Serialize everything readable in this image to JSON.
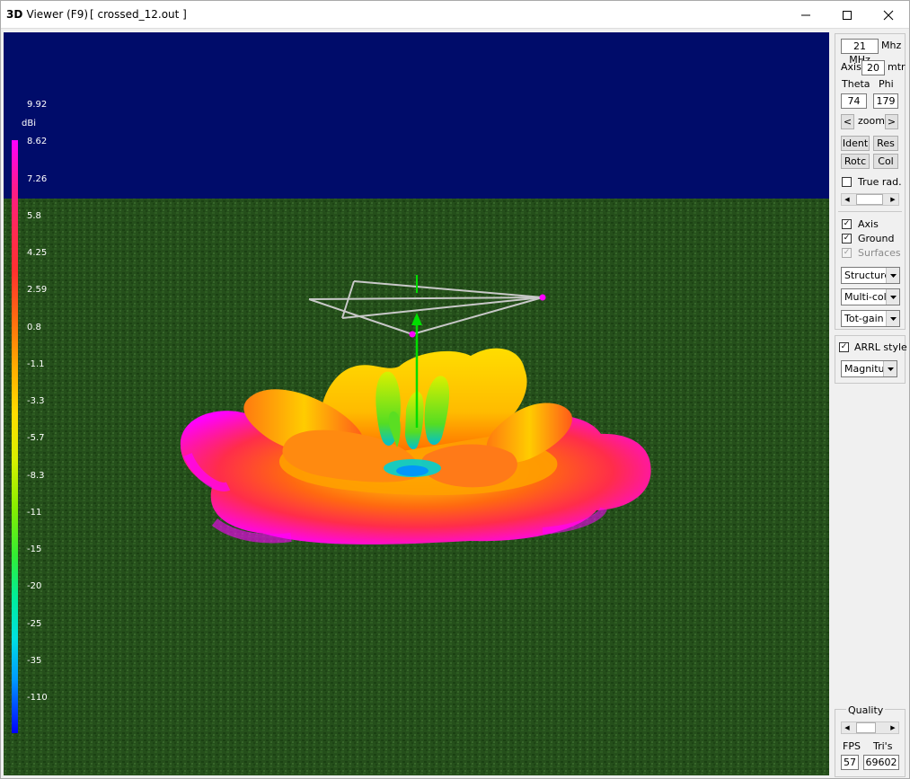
{
  "window": {
    "title_bold": "3D",
    "title_rest": "Viewer (F9)",
    "file_title": "[  crossed_12.out ]",
    "controls": [
      "minimize",
      "maximize",
      "close"
    ]
  },
  "legend": {
    "unit": "dBi",
    "labels": [
      "9.92",
      "8.62",
      "7.26",
      "5.8",
      "4.25",
      "2.59",
      "0.8",
      "-1.1",
      "-3.3",
      "-5.7",
      "-8.3",
      "-11",
      "-15",
      "-20",
      "-25",
      "-35",
      "-110"
    ]
  },
  "panel": {
    "freq_value": "21 MHz",
    "freq_unit": "Mhz",
    "axis_label": "Axis",
    "axis_value": "20",
    "axis_unit": "mtr",
    "theta_label": "Theta",
    "phi_label": "Phi",
    "theta_value": "74",
    "phi_value": "179",
    "zoom_left": "<",
    "zoom_label": "zoom",
    "zoom_right": ">",
    "btn_ident": "Ident",
    "btn_res": "Res",
    "btn_rotc": "Rotc",
    "btn_col": "Col",
    "true_rad_label": "True rad.",
    "true_rad_checked": false,
    "axis_cb_label": "Axis",
    "axis_cb_checked": true,
    "ground_label": "Ground",
    "ground_checked": true,
    "surfaces_label": "Surfaces",
    "surfaces_checked": true,
    "combo_structure": "Structure",
    "combo_color": "Multi-colo",
    "combo_gain": "Tot-gain",
    "arrl_label": "ARRL style",
    "arrl_checked": true,
    "combo_magnitude": "Magnitude",
    "quality_label": "Quality",
    "fps_label": "FPS",
    "tris_label": "Tri's",
    "fps_value": "57",
    "tris_value": "69602"
  },
  "colors": {
    "sky": "#000c6a",
    "ground": "#2a5a1c",
    "pattern_max": "#ff00ff",
    "pattern_mid": "#ffdd00",
    "pattern_min": "#0000ff",
    "antenna_wire": "#c8c8c8",
    "axis_arrow": "#00dd00"
  }
}
